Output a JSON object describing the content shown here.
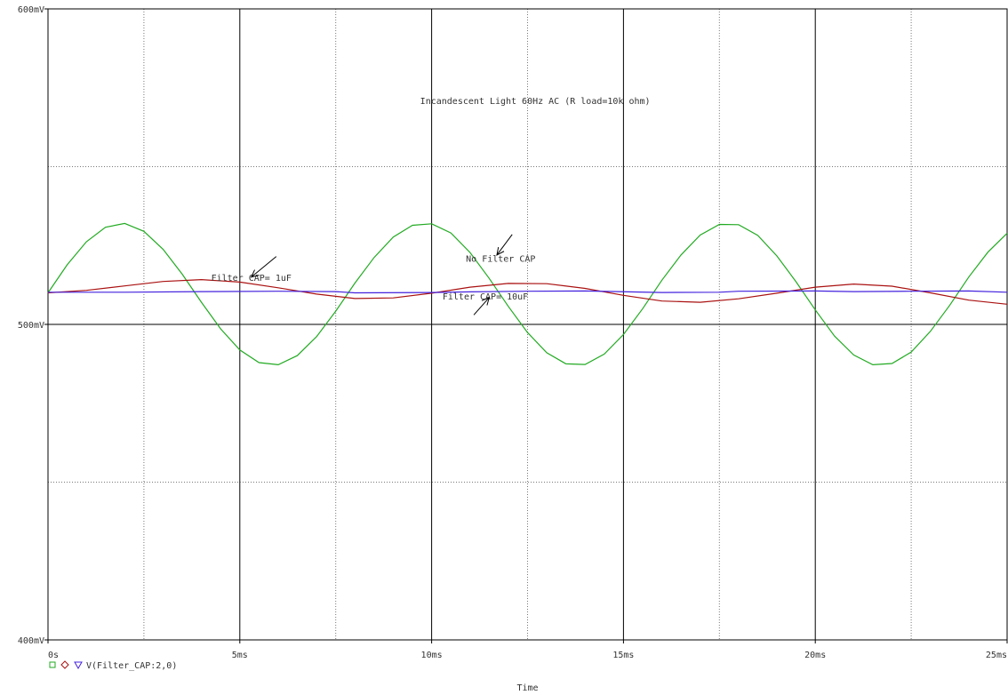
{
  "chart_data": {
    "type": "line",
    "title": "Incandescent Light 60Hz AC (R load=10k ohm)",
    "xlabel": "Time",
    "ylabel": "",
    "xlim": [
      0,
      25
    ],
    "ylim": [
      400,
      600
    ],
    "x_unit": "ms",
    "y_unit": "mV",
    "x_ticks": [
      0,
      5,
      10,
      15,
      20,
      25
    ],
    "x_tick_labels": [
      "0s",
      "5ms",
      "10ms",
      "15ms",
      "20ms",
      "25ms"
    ],
    "y_ticks": [
      400,
      500,
      600
    ],
    "y_tick_labels": [
      "400mV",
      "500mV",
      "600mV"
    ],
    "grid": true,
    "legend": {
      "placement": "bottom-left",
      "markers": [
        "square",
        "diamond",
        "triangle-down"
      ],
      "label": "V(Filter_CAP:2,0)"
    },
    "series": [
      {
        "color": "#22aa22",
        "x": [
          0,
          0.5,
          1.0,
          1.5,
          2.0,
          2.5,
          3.0,
          3.5,
          4.0,
          4.5,
          5.0,
          5.5,
          6.0,
          6.5,
          7.0,
          7.5,
          8.0,
          8.5,
          9.0,
          9.5,
          10.0,
          10.5,
          11.0,
          11.5,
          12.0,
          12.5,
          13.0,
          13.5,
          14.0,
          14.5,
          15.0,
          15.5,
          16.0,
          16.5,
          17.0,
          17.5,
          18.0,
          18.5,
          19.0,
          19.5,
          20.0,
          20.5,
          21.0,
          21.5,
          22.0,
          22.5,
          23.0,
          23.5,
          24.0,
          24.5,
          25.0
        ],
        "values": [
          510.0,
          518.9,
          526.2,
          530.8,
          532.0,
          529.5,
          523.8,
          515.9,
          507.0,
          498.6,
          491.9,
          487.9,
          487.2,
          490.1,
          496.1,
          504.2,
          513.1,
          521.2,
          527.7,
          531.4,
          531.9,
          529.0,
          522.8,
          514.6,
          505.7,
          497.4,
          491.0,
          487.5,
          487.3,
          490.6,
          496.8,
          505.0,
          514.0,
          522.0,
          528.3,
          531.7,
          531.6,
          528.2,
          521.7,
          513.5,
          504.6,
          496.3,
          490.3,
          487.2,
          487.6,
          491.2,
          497.8,
          506.0,
          515.0,
          522.9,
          528.9
        ]
      },
      {
        "color": "#aa1111",
        "x": [
          0,
          1,
          2,
          3,
          4,
          5,
          6,
          7,
          8,
          9,
          10,
          11,
          12,
          13,
          14,
          15,
          16,
          17,
          18,
          19,
          20,
          21,
          22,
          23,
          24,
          25
        ],
        "values": [
          510.0,
          510.8,
          512.2,
          513.6,
          514.2,
          513.4,
          511.6,
          509.6,
          508.2,
          508.4,
          509.9,
          511.8,
          513.0,
          512.9,
          511.4,
          509.2,
          507.4,
          507.0,
          508.1,
          509.9,
          511.8,
          512.8,
          512.1,
          510.0,
          507.7,
          506.4
        ]
      },
      {
        "color": "#4422dd",
        "x": [
          0,
          2,
          4,
          6,
          7.5,
          8,
          10,
          11,
          12.5,
          14,
          16,
          17.5,
          18,
          20,
          21,
          22.5,
          24,
          25
        ],
        "values": [
          510.2,
          510.2,
          510.4,
          510.5,
          510.4,
          510.0,
          510.1,
          510.3,
          510.5,
          510.6,
          510.1,
          510.2,
          510.5,
          510.6,
          510.4,
          510.5,
          510.6,
          510.2
        ]
      }
    ],
    "annotations": [
      {
        "text": "No Filter CAP",
        "x": 11.8,
        "y": 521,
        "arrow_from": [
          12.1,
          528.5
        ],
        "arrow_to": [
          11.7,
          522
        ]
      },
      {
        "text": "Filter CAP= 1uF",
        "x": 5.3,
        "y": 515,
        "arrow_from": [
          5.95,
          521.5
        ],
        "arrow_to": [
          5.3,
          515
        ]
      },
      {
        "text": "Filter CAP= 10uF",
        "x": 11.4,
        "y": 509,
        "arrow_from": [
          11.1,
          503
        ],
        "arrow_to": [
          11.5,
          508.5
        ]
      }
    ]
  }
}
